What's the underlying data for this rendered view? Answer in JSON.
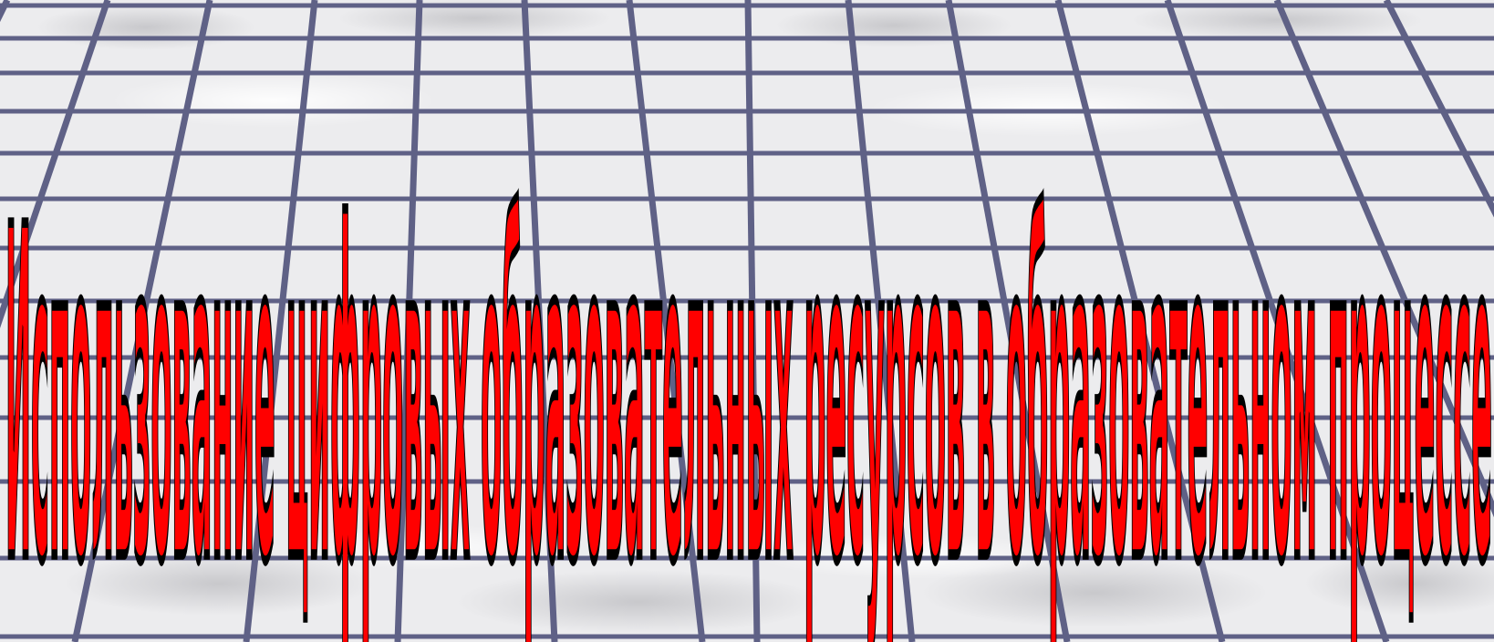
{
  "slide": {
    "title": "Использование цифровых образовательных ресурсов в образовательном процессе"
  },
  "colors": {
    "title_fill": "#ff0000",
    "title_stroke": "#000000",
    "grid_line": "#5f6186",
    "background_light": "#f2f2f3",
    "background_dark": "#c9c9cc"
  }
}
